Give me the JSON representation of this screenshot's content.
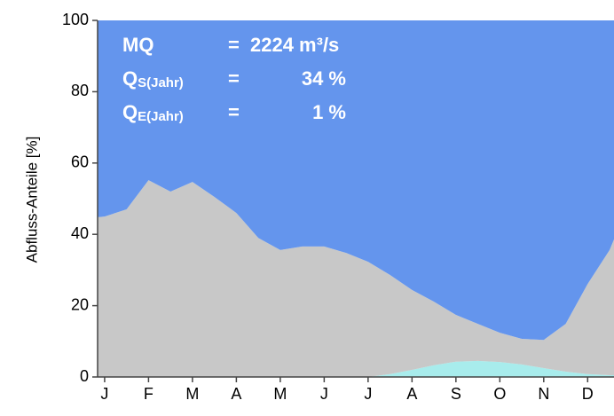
{
  "chart_data": {
    "type": "stacked_area",
    "y_label": "Abfluss-Anteile [%]",
    "x": [
      -0.16,
      0,
      0.5,
      1,
      1.5,
      2,
      2.5,
      3,
      3.5,
      4,
      4.5,
      5,
      5.5,
      6,
      6.5,
      7,
      7.5,
      8,
      8.5,
      9,
      9.5,
      10,
      10.5,
      11,
      11.5,
      11.6
    ],
    "series": [
      {
        "color": "#a8ecec",
        "values": [
          0,
          0,
          0,
          0,
          0,
          0,
          0,
          0,
          0,
          0,
          0,
          0,
          0,
          0,
          0.8,
          2,
          3.3,
          4.3,
          4.5,
          4.2,
          3.5,
          2.5,
          1.5,
          0.8,
          0.5,
          0.5
        ]
      },
      {
        "color": "#c8c8c8",
        "values": [
          44.8,
          45,
          47,
          55.2,
          52,
          54.7,
          50.5,
          46,
          39,
          35.6,
          36.6,
          36.6,
          34.8,
          32.3,
          27.8,
          22.4,
          17.8,
          13.1,
          10.4,
          8.2,
          7.2,
          7.9,
          13.4,
          25.3,
          35.1,
          38.1
        ]
      },
      {
        "color": "#6495ed",
        "values": [
          55.2,
          55,
          53,
          44.8,
          48,
          45.3,
          49.5,
          54,
          61,
          64.4,
          63.4,
          63.4,
          65.2,
          67.7,
          71.4,
          75.6,
          78.9,
          82.6,
          85.1,
          87.6,
          89.3,
          89.6,
          85.1,
          73.9,
          64.4,
          61.4
        ]
      }
    ],
    "xlim": [
      -0.16,
      11.6
    ],
    "xticks": [
      {
        "value": 0,
        "label": "J"
      },
      {
        "value": 1,
        "label": "F"
      },
      {
        "value": 2,
        "label": "M"
      },
      {
        "value": 3,
        "label": "A"
      },
      {
        "value": 4,
        "label": "M"
      },
      {
        "value": 5,
        "label": "J"
      },
      {
        "value": 6,
        "label": "J"
      },
      {
        "value": 7,
        "label": "A"
      },
      {
        "value": 8,
        "label": "S"
      },
      {
        "value": 9,
        "label": "O"
      },
      {
        "value": 10,
        "label": "N"
      },
      {
        "value": 11,
        "label": "D"
      }
    ],
    "ylim": [
      0,
      100
    ],
    "yticks": [
      0,
      20,
      40,
      60,
      80,
      100
    ],
    "annotations": [
      {
        "label": "MQ",
        "op": "=",
        "value": "2224 m³/s"
      },
      {
        "label": "Q",
        "sub": "S(Jahr)",
        "op": "=",
        "value": "34 %"
      },
      {
        "label": "Q",
        "sub": "E(Jahr)",
        "op": "=",
        "value": "1 %"
      }
    ]
  }
}
